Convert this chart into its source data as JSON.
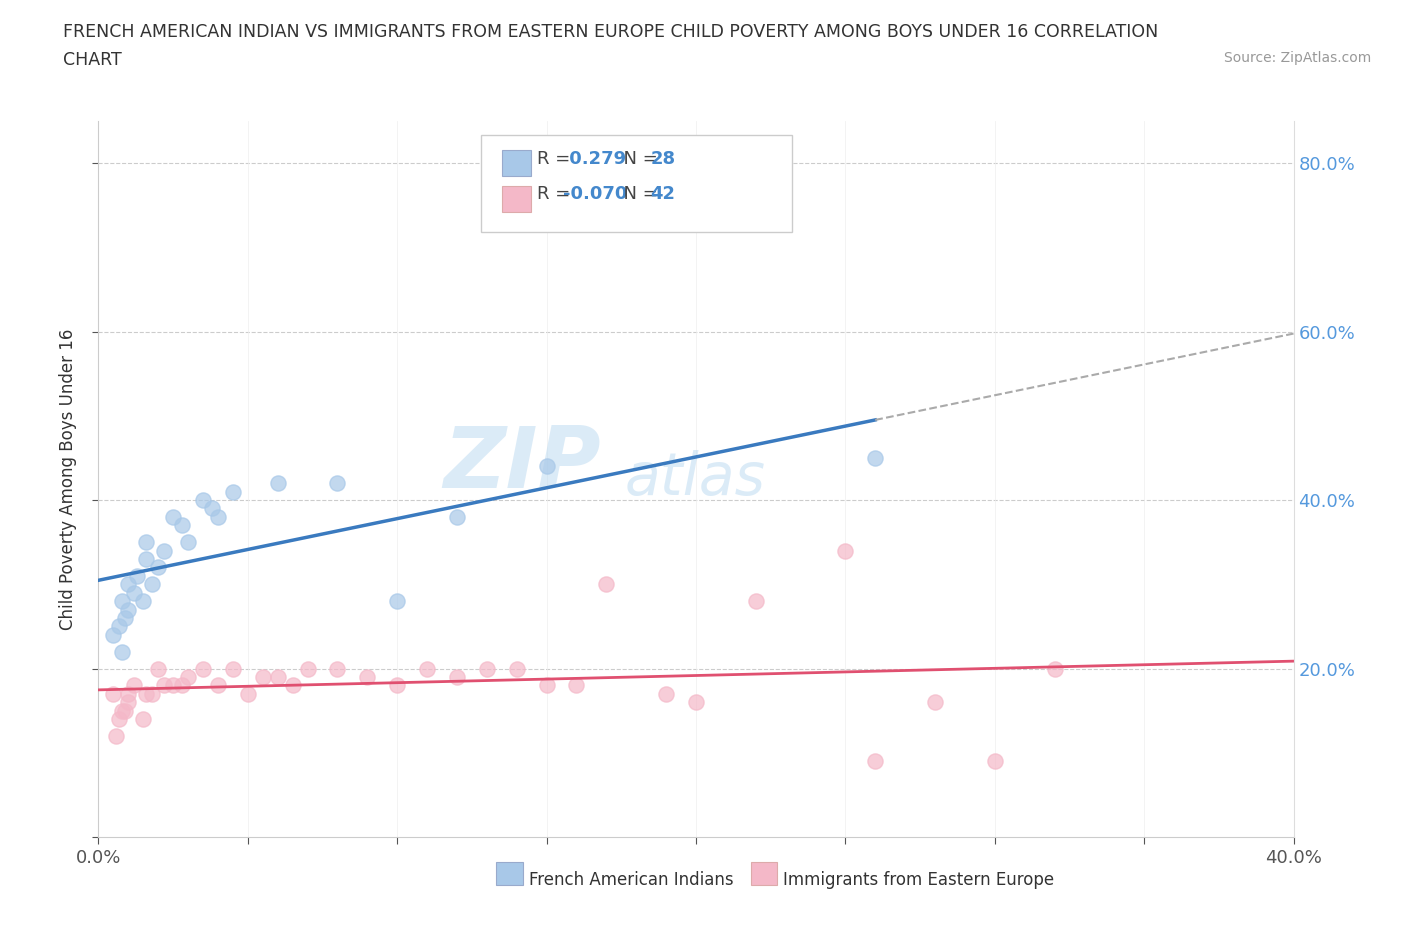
{
  "title": "FRENCH AMERICAN INDIAN VS IMMIGRANTS FROM EASTERN EUROPE CHILD POVERTY AMONG BOYS UNDER 16 CORRELATION\nCHART",
  "source": "Source: ZipAtlas.com",
  "ylabel": "Child Poverty Among Boys Under 16",
  "xlim": [
    0.0,
    0.4
  ],
  "ylim": [
    0.0,
    0.85
  ],
  "R1": 0.279,
  "N1": 28,
  "R2": -0.07,
  "N2": 42,
  "color_blue": "#a8c8e8",
  "color_pink": "#f4b8c8",
  "color_line_blue": "#3a7abf",
  "color_line_pink": "#e05070",
  "legend_label1": "French American Indians",
  "legend_label2": "Immigrants from Eastern Europe",
  "blue_x": [
    0.005,
    0.007,
    0.008,
    0.008,
    0.009,
    0.01,
    0.01,
    0.012,
    0.013,
    0.015,
    0.016,
    0.016,
    0.018,
    0.02,
    0.022,
    0.025,
    0.028,
    0.03,
    0.035,
    0.038,
    0.04,
    0.045,
    0.06,
    0.08,
    0.1,
    0.12,
    0.15,
    0.26
  ],
  "blue_y": [
    0.24,
    0.25,
    0.22,
    0.28,
    0.26,
    0.27,
    0.3,
    0.29,
    0.31,
    0.28,
    0.33,
    0.35,
    0.3,
    0.32,
    0.34,
    0.38,
    0.37,
    0.35,
    0.4,
    0.39,
    0.38,
    0.41,
    0.42,
    0.42,
    0.28,
    0.38,
    0.44,
    0.45
  ],
  "pink_x": [
    0.005,
    0.006,
    0.007,
    0.008,
    0.009,
    0.01,
    0.01,
    0.012,
    0.015,
    0.016,
    0.018,
    0.02,
    0.022,
    0.025,
    0.028,
    0.03,
    0.035,
    0.04,
    0.045,
    0.05,
    0.055,
    0.06,
    0.065,
    0.07,
    0.08,
    0.09,
    0.1,
    0.11,
    0.12,
    0.13,
    0.14,
    0.15,
    0.16,
    0.17,
    0.19,
    0.2,
    0.22,
    0.25,
    0.26,
    0.28,
    0.3,
    0.32
  ],
  "pink_y": [
    0.17,
    0.12,
    0.14,
    0.15,
    0.15,
    0.16,
    0.17,
    0.18,
    0.14,
    0.17,
    0.17,
    0.2,
    0.18,
    0.18,
    0.18,
    0.19,
    0.2,
    0.18,
    0.2,
    0.17,
    0.19,
    0.19,
    0.18,
    0.2,
    0.2,
    0.19,
    0.18,
    0.2,
    0.19,
    0.2,
    0.2,
    0.18,
    0.18,
    0.3,
    0.17,
    0.16,
    0.28,
    0.34,
    0.09,
    0.16,
    0.09,
    0.2
  ]
}
